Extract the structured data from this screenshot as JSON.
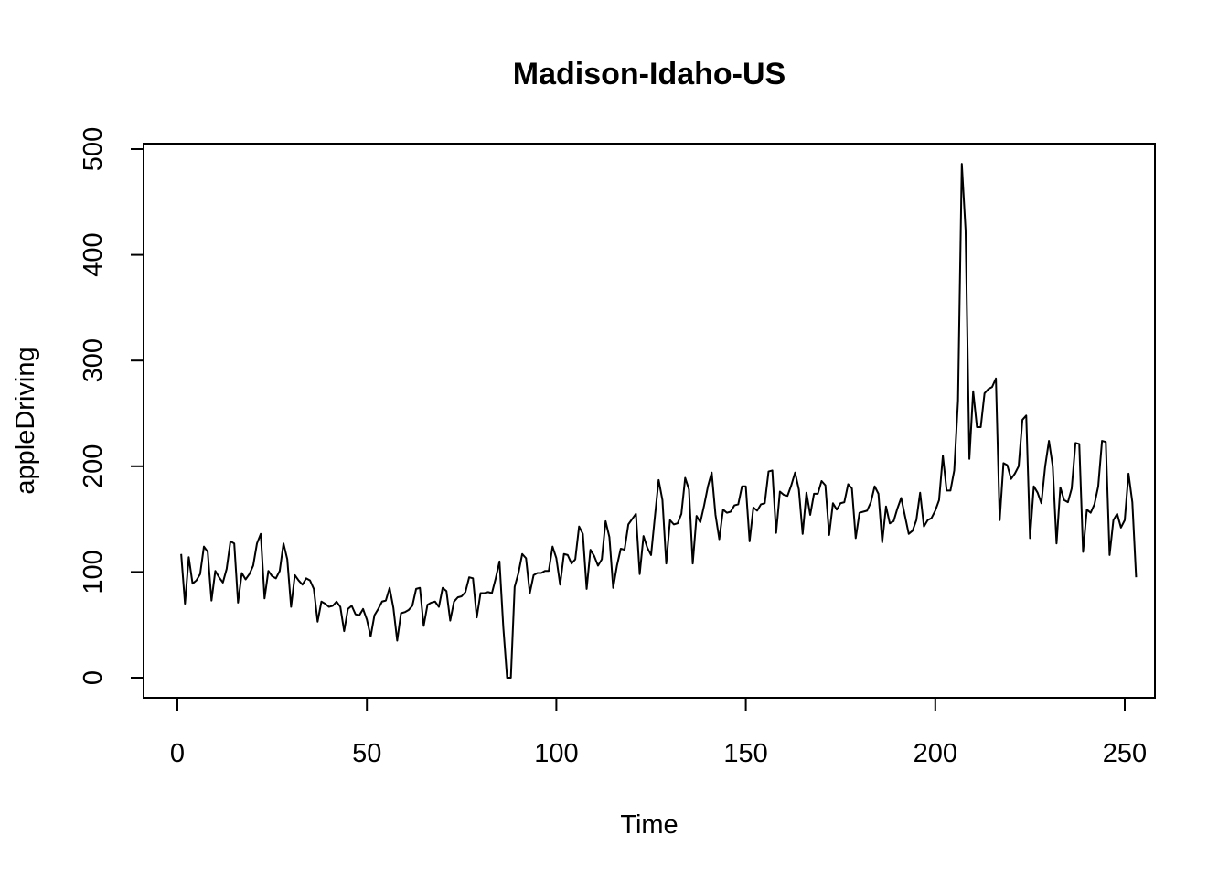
{
  "chart_data": {
    "type": "line",
    "title": "Madison-Idaho-US",
    "xlabel": "Time",
    "ylabel": "appleDriving",
    "xlim": [
      1,
      248
    ],
    "ylim": [
      0,
      486
    ],
    "x_ticks": [
      0,
      50,
      100,
      150,
      200,
      250
    ],
    "y_ticks": [
      0,
      100,
      200,
      300,
      400,
      500
    ],
    "x_tick_labels": [
      "0",
      "50",
      "100",
      "150",
      "200",
      "250"
    ],
    "y_tick_labels": [
      "0",
      "100",
      "200",
      "300",
      "400",
      "500"
    ],
    "grid": false,
    "legend": "none",
    "line_color": "#000000",
    "series": [
      {
        "x_start": 1,
        "x_step": 1,
        "values": [
          117,
          70,
          114,
          89,
          92,
          98,
          124,
          119,
          73,
          101,
          95,
          90,
          103,
          129,
          127,
          71,
          99,
          93,
          98,
          106,
          127,
          136,
          75,
          101,
          96,
          94,
          101,
          127,
          112,
          67,
          97,
          92,
          88,
          94,
          92,
          84,
          53,
          72,
          70,
          67,
          68,
          72,
          67,
          44,
          65,
          68,
          60,
          59,
          65,
          55,
          39,
          59,
          65,
          72,
          73,
          85,
          66,
          35,
          61,
          62,
          64,
          68,
          84,
          85,
          49,
          69,
          71,
          72,
          67,
          85,
          82,
          54,
          72,
          76,
          77,
          81,
          95,
          94,
          57,
          80,
          80,
          81,
          80,
          94,
          110,
          48,
          0,
          0,
          86,
          99,
          117,
          113,
          80,
          97,
          99,
          99,
          101,
          101,
          124,
          113,
          88,
          117,
          116,
          108,
          112,
          143,
          136,
          84,
          121,
          115,
          106,
          112,
          148,
          133,
          85,
          106,
          122,
          121,
          145,
          150,
          155,
          98,
          134,
          123,
          116,
          152,
          187,
          168,
          108,
          149,
          145,
          146,
          155,
          189,
          178,
          108,
          153,
          147,
          163,
          181,
          194,
          154,
          131,
          159,
          156,
          157,
          163,
          164,
          181,
          181,
          129,
          161,
          158,
          164,
          165,
          195,
          196,
          137,
          176,
          173,
          172,
          182,
          194,
          178,
          136,
          175,
          154,
          174,
          174,
          186,
          182,
          135,
          165,
          159,
          165,
          166,
          183,
          179,
          132,
          156,
          157,
          158,
          166,
          181,
          174,
          128,
          162,
          146,
          148,
          160,
          170,
          153,
          136,
          139,
          149,
          175,
          143,
          149,
          151,
          158,
          168,
          210,
          177,
          177,
          196,
          262,
          486,
          423,
          207,
          271,
          237,
          237,
          269,
          273,
          275,
          283,
          149,
          203,
          201,
          188,
          193,
          200,
          244,
          248,
          132,
          181,
          175,
          165,
          200,
          224,
          200,
          127,
          180,
          168,
          166,
          179,
          222,
          221,
          119,
          159,
          156,
          164,
          181,
          224,
          223,
          116,
          149,
          155,
          142,
          149,
          193,
          166,
          95
        ]
      }
    ]
  }
}
